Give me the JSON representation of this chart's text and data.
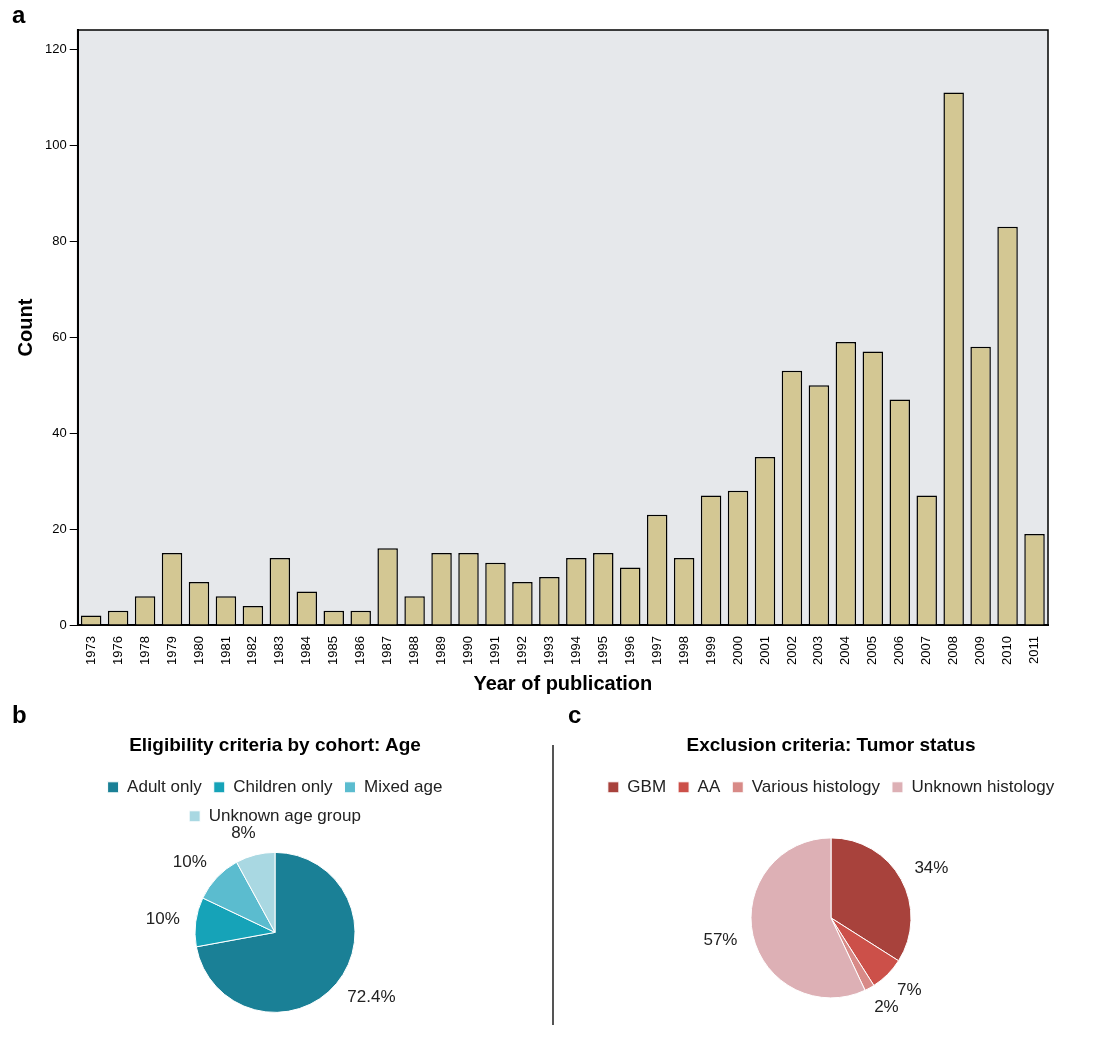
{
  "chart_data": [
    {
      "type": "bar",
      "annotations": [
        "a"
      ],
      "xlabel": "Year of publication",
      "ylabel": "Count",
      "categories": [
        "1973",
        "1976",
        "1978",
        "1979",
        "1980",
        "1981",
        "1982",
        "1983",
        "1984",
        "1985",
        "1986",
        "1987",
        "1988",
        "1989",
        "1990",
        "1991",
        "1992",
        "1993",
        "1994",
        "1995",
        "1996",
        "1997",
        "1998",
        "1999",
        "2000",
        "2001",
        "2002",
        "2003",
        "2004",
        "2005",
        "2006",
        "2007",
        "2008",
        "2009",
        "2010",
        "2011"
      ],
      "values": [
        2,
        3,
        6,
        15,
        9,
        6,
        4,
        14,
        7,
        3,
        3,
        16,
        6,
        15,
        15,
        13,
        9,
        10,
        14,
        15,
        12,
        23,
        14,
        27,
        28,
        35,
        53,
        50,
        59,
        57,
        47,
        27,
        111,
        58,
        83,
        19
      ],
      "color": "#d3c793",
      "ylim": [
        0,
        124
      ],
      "yticks": [
        0,
        20,
        40,
        60,
        80,
        100,
        120
      ],
      "grid": false,
      "legend": false
    },
    {
      "type": "pie",
      "annotations": [
        "b"
      ],
      "title": "Eligibility criteria by cohort: Age",
      "categories": [
        "Adult only",
        "Children only",
        "Mixed age",
        "Unknown age group"
      ],
      "values": [
        72.4,
        10,
        10,
        8
      ],
      "value_labels": [
        "72.4%",
        "10%",
        "10%",
        "8%"
      ],
      "colors": [
        "#1a8096",
        "#16a3b8",
        "#5bbccf",
        "#a9d8e2"
      ],
      "legend": "top"
    },
    {
      "type": "pie",
      "annotations": [
        "c"
      ],
      "title": "Exclusion criteria: Tumor status",
      "categories": [
        "GBM",
        "AA",
        "Various histology",
        "Unknown histology"
      ],
      "values": [
        34,
        7,
        2,
        57
      ],
      "value_labels": [
        "34%",
        "7%",
        "2%",
        "57%"
      ],
      "colors": [
        "#a8423c",
        "#cc5049",
        "#d88a87",
        "#ddb0b5"
      ],
      "legend": "top"
    }
  ]
}
